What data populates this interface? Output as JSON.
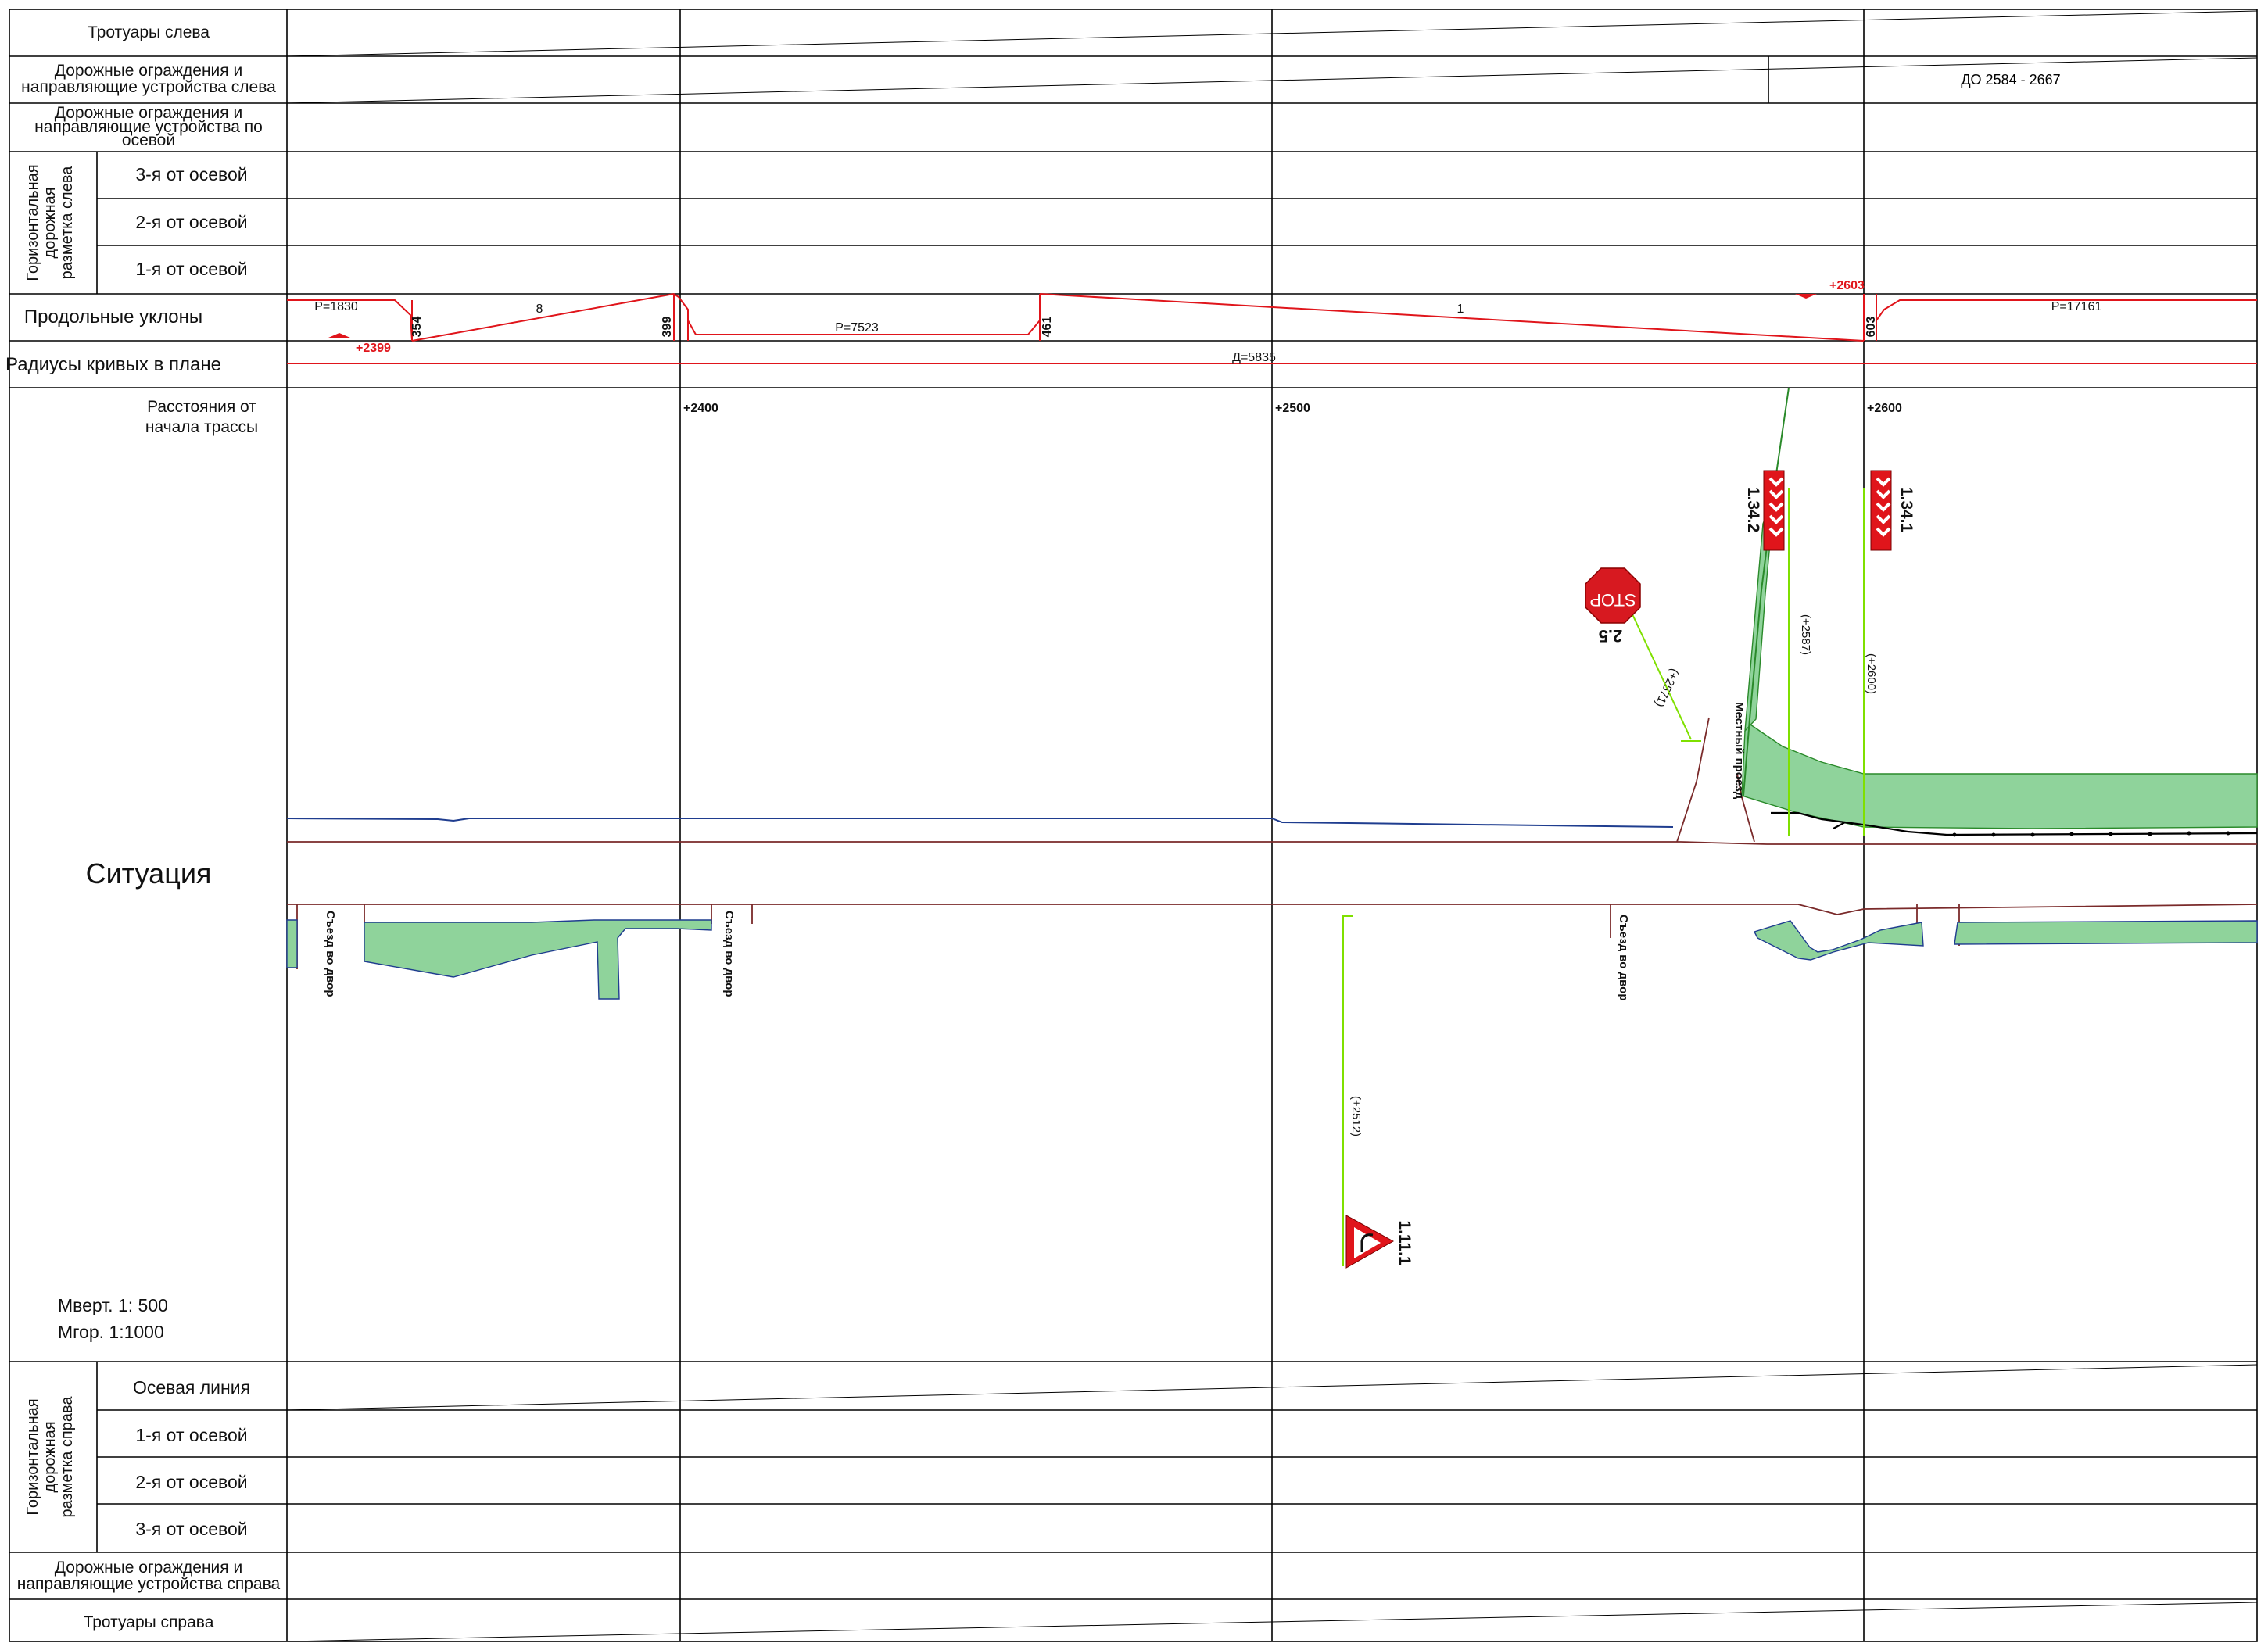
{
  "header": {
    "sidewalks_left": "Тротуары слева",
    "guard_left": [
      "Дорожные ограждения и",
      "направляющие устройства слева"
    ],
    "guard_axis": [
      "Дорожные ограждения и",
      "направляющие устройства по",
      "осевой"
    ],
    "horiz_marking_left": [
      "Горизонтальная",
      "дорожная",
      "разметка слева"
    ],
    "marking_left_rows": [
      "3-я от осевой",
      "2-я от осевой",
      "1-я от осевой"
    ],
    "slopes": "Продольные уклоны",
    "radii": "Радиусы кривых в плане",
    "distances": [
      "Расстояния от",
      "начала трассы"
    ],
    "situation": "Ситуация",
    "scale_v": "Мверт. 1: 500",
    "scale_h": "Мгор.   1:1000",
    "horiz_marking_right": [
      "Горизонтальная",
      "дорожная",
      "разметка справа"
    ],
    "marking_right_rows": [
      "Осевая линия",
      "1-я от осевой",
      "2-я от осевой",
      "3-я от осевой"
    ],
    "guard_right": [
      "Дорожные ограждения и",
      "направляющие устройства справа"
    ],
    "sidewalks_right": "Тротуары справа"
  },
  "guard_left_range": "ДО  2584 - 2667",
  "pickets": [
    "+2400",
    "+2500",
    "+2600"
  ],
  "profile": {
    "radii_left": [
      "Р=1830",
      "Р=7523",
      "Р=17161"
    ],
    "slopes": [
      "8",
      "1"
    ],
    "breakpoints": [
      "354",
      "399",
      "461",
      "603"
    ],
    "marks": [
      "+2399",
      "+2603"
    ],
    "curve": "Д=5835"
  },
  "situation_labels": {
    "driveway": "Съезд во двор",
    "local_road": "Местный проезд",
    "sign_stop_code": "2.5",
    "sign_stop_text": "STOP",
    "sign_stop_pos": "(+2571)",
    "sign_1342": "1.34.2",
    "sign_1342_pos": "(+2587)",
    "sign_1341": "1.34.1",
    "sign_1341_pos": "(+2600)",
    "sign_1111": "1.11.1",
    "sign_1111_pos": "(+2512)"
  },
  "colors": {
    "grid": "#000000",
    "profile_red": "#e0151b",
    "green_fill": "#8fd39b",
    "green_line": "#2a8a2a",
    "lime": "#7fe000",
    "blue": "#1f3d8f",
    "road_edge": "#7a2a2a"
  }
}
